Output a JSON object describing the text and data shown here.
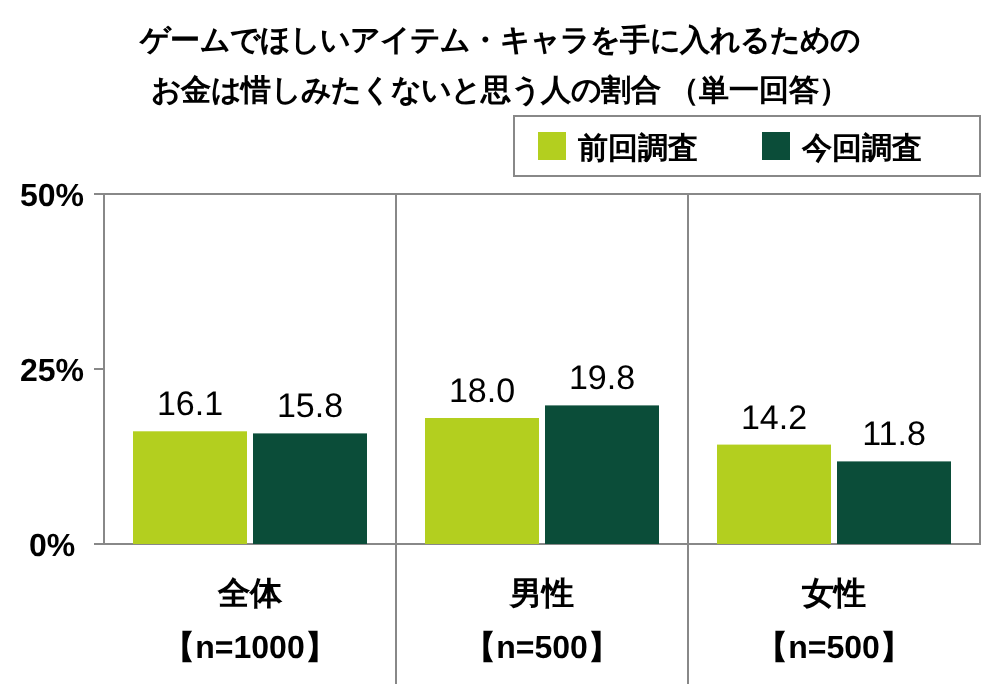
{
  "chart_data": {
    "type": "bar",
    "title": "ゲームでほしいアイテム・キャラを手に入れるためのお金は惜しみたくないと思う人の割合 （単一回答）",
    "categories": [
      "全体【n=1000】",
      "男性【n=500】",
      "女性【n=500】"
    ],
    "series": [
      {
        "name": "前回調査",
        "color": "#b3cf1f",
        "values": [
          16.1,
          18.0,
          14.2
        ],
        "value_labels": [
          "16.1",
          "18.0",
          "14.2"
        ]
      },
      {
        "name": "今回調査",
        "color": "#0b4d39",
        "values": [
          15.8,
          19.8,
          11.8
        ],
        "value_labels": [
          "15.8",
          "19.8",
          "11.8"
        ]
      }
    ],
    "ylim": [
      0,
      50
    ],
    "yticks": [
      {
        "value": 0,
        "label": "0%"
      },
      {
        "value": 25,
        "label": "25%"
      },
      {
        "value": 50,
        "label": "50%"
      }
    ],
    "legend": "top right",
    "grid": false
  }
}
